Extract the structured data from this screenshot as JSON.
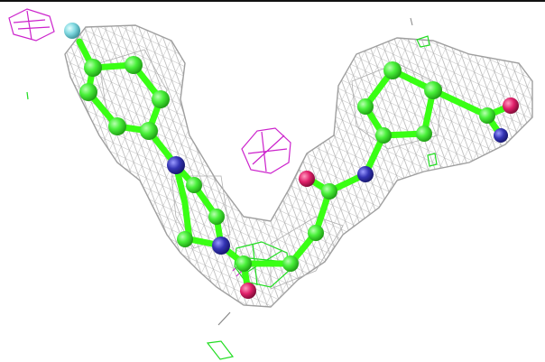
{
  "scene": {
    "background": "#ffffff",
    "colors": {
      "carbon": "#39ff14",
      "nitrogen": "#3030b0",
      "oxygen": "#e0206a",
      "fluorine": "#7fd8e0",
      "density_mesh": "#9a9a9a",
      "positive_difference_mesh": "#22dd22",
      "negative_difference_mesh": "#cc22cc"
    },
    "atom_types": [
      "carbon",
      "nitrogen",
      "oxygen",
      "fluorine"
    ],
    "meshes": [
      "density-mesh",
      "positive-difference-mesh",
      "negative-difference-mesh"
    ]
  }
}
